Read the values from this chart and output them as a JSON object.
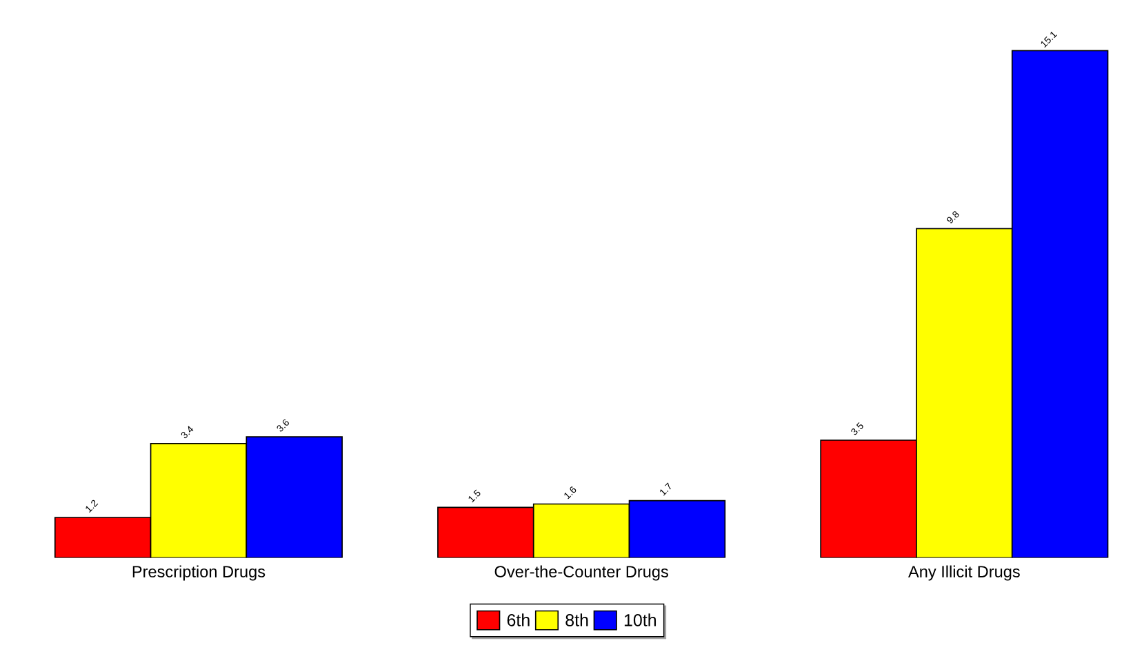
{
  "chart_data": {
    "type": "bar",
    "categories": [
      "Prescription Drugs",
      "Over-the-Counter Drugs",
      "Any Illicit Drugs"
    ],
    "series": [
      {
        "name": "6th",
        "color": "#ff0000",
        "values": [
          1.2,
          1.5,
          3.5
        ]
      },
      {
        "name": "8th",
        "color": "#ffff00",
        "values": [
          3.4,
          1.6,
          9.8
        ]
      },
      {
        "name": "10th",
        "color": "#0000ff",
        "values": [
          3.6,
          1.7,
          15.1
        ]
      }
    ],
    "data_labels": true,
    "legend": "bottom",
    "grid": false
  }
}
